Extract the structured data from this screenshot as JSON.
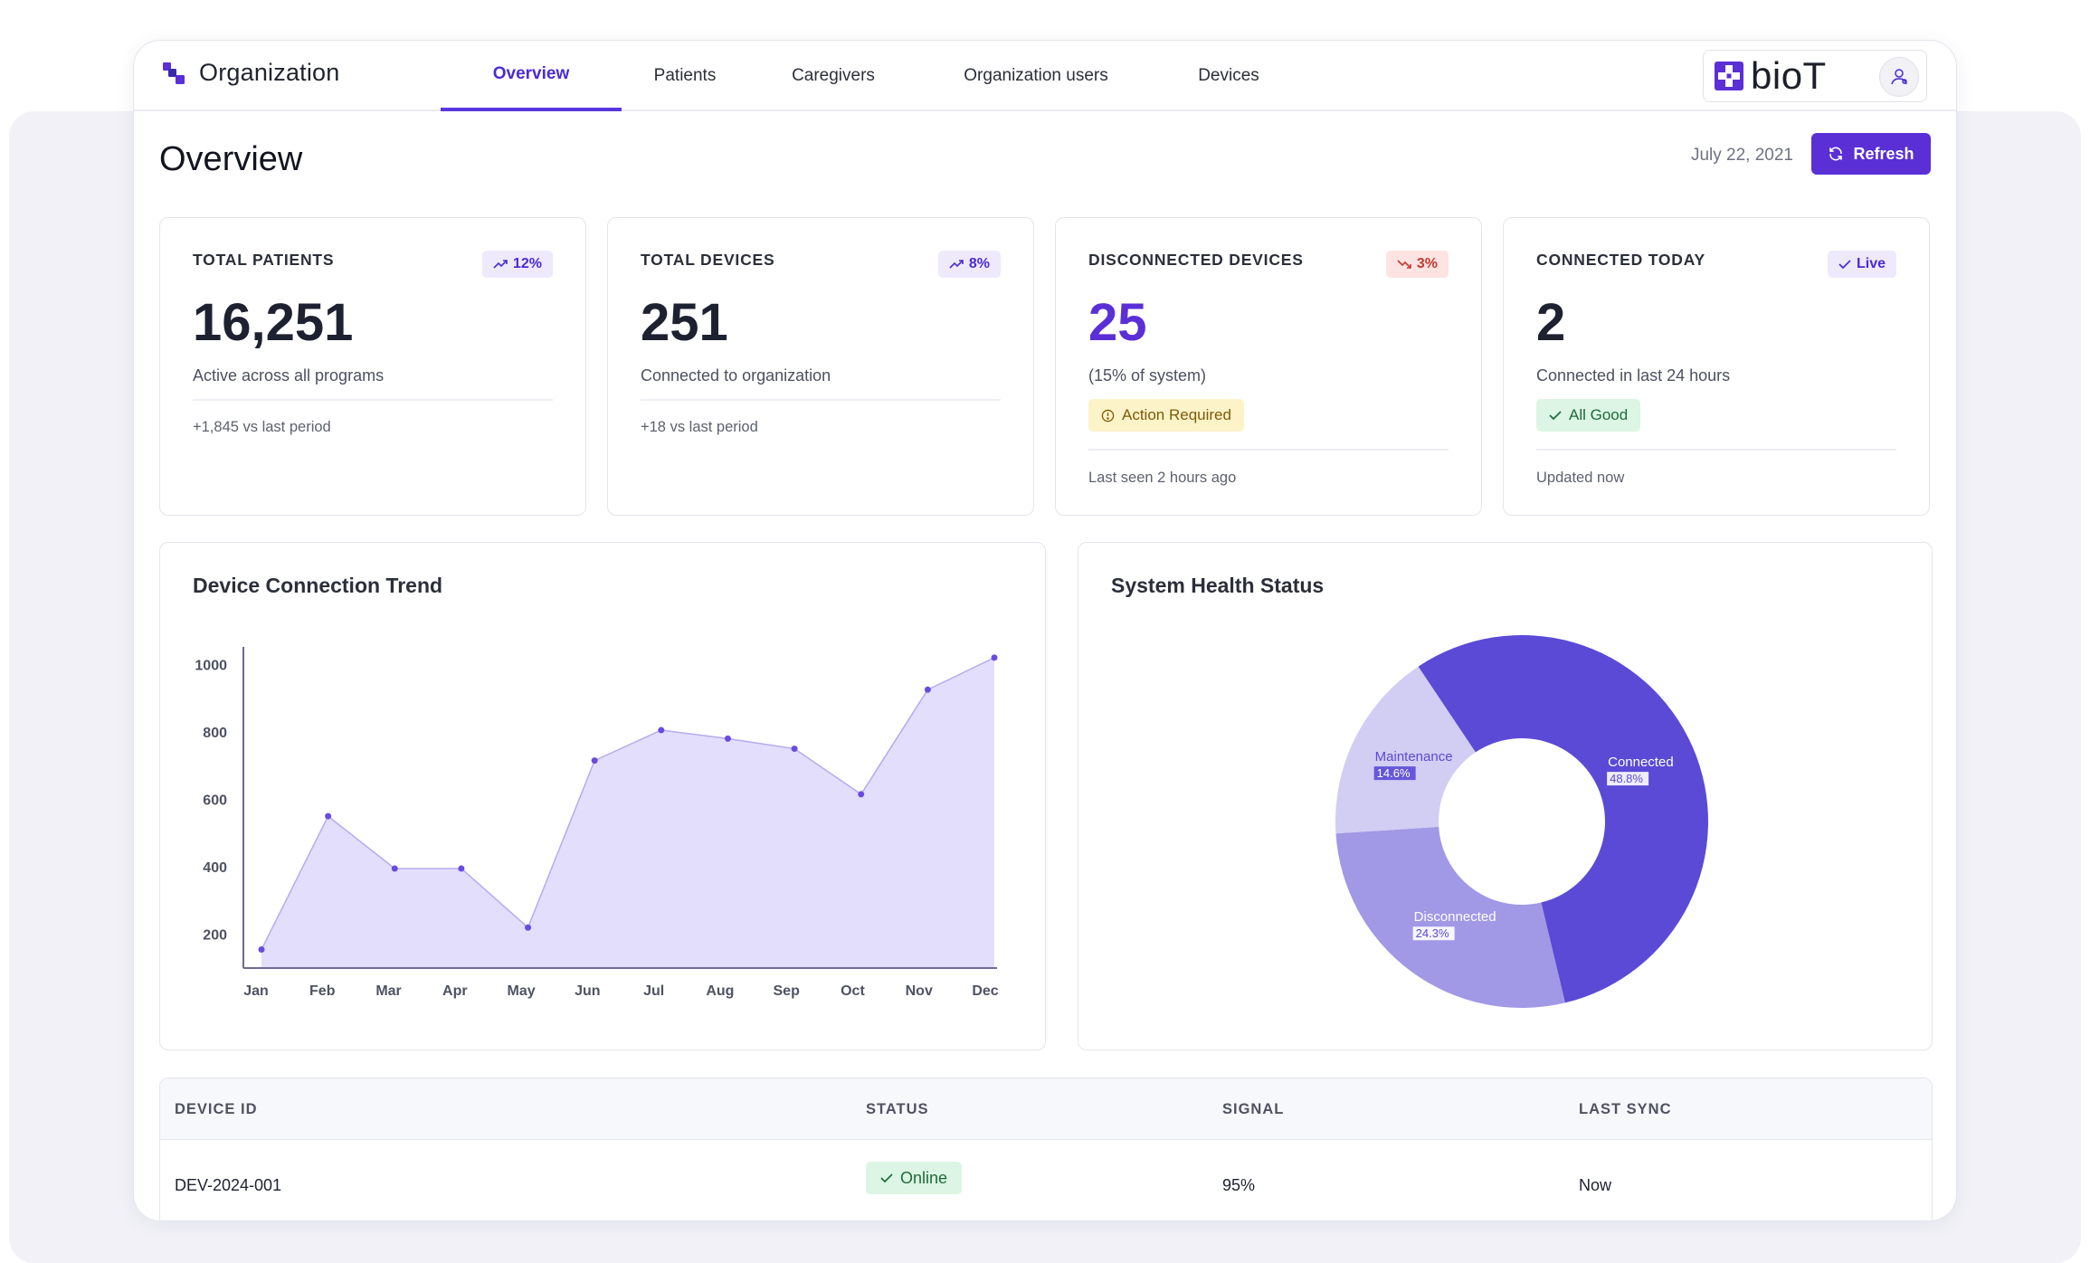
{
  "header": {
    "org_title": "Organization",
    "tabs": [
      {
        "label": "Overview",
        "active": true
      },
      {
        "label": "Patients",
        "active": false
      },
      {
        "label": "Caregivers",
        "active": false
      },
      {
        "label": "Organization users",
        "active": false
      },
      {
        "label": "Devices",
        "active": false
      }
    ],
    "brand": "bioT",
    "avatar_icon": "user-network-icon"
  },
  "page": {
    "title": "Overview",
    "date": "July 22, 2021",
    "refresh_label": "Refresh"
  },
  "stats": [
    {
      "label": "TOTAL PATIENTS",
      "badge": "12%",
      "badge_trend": "up",
      "value": "16,251",
      "sub": "Active across all programs",
      "foot": "+1,845 vs last period"
    },
    {
      "label": "TOTAL DEVICES",
      "badge": "8%",
      "badge_trend": "up",
      "value": "251",
      "sub": "Connected to organization",
      "foot": "+18 vs last period"
    },
    {
      "label": "DISCONNECTED DEVICES",
      "badge": "3%",
      "badge_trend": "down",
      "value": "25",
      "sub": "(15% of system)",
      "pill": "Action Required",
      "foot": "Last seen 2 hours ago"
    },
    {
      "label": "CONNECTED TODAY",
      "badge": "Live",
      "badge_trend": "check",
      "value": "2",
      "sub": "Connected in last 24 hours",
      "pill": "All Good",
      "foot": "Updated now"
    }
  ],
  "colors": {
    "accent": "#5a2fd6",
    "area_fill": "#e3defb",
    "area_line": "#b6aaf0",
    "point": "#6a4be0",
    "donut_connected": "#5a4ad6",
    "donut_disconnected": "#a198e6",
    "donut_maintenance": "#d2cdf3",
    "status_online": "#dcf5e4"
  },
  "chart_data": [
    {
      "type": "area",
      "title": "Device Connection Trend",
      "categories": [
        "Jan",
        "Feb",
        "Mar",
        "Apr",
        "May",
        "Jun",
        "Jul",
        "Aug",
        "Sep",
        "Oct",
        "Nov",
        "Dec"
      ],
      "values": [
        155,
        550,
        395,
        395,
        220,
        715,
        805,
        780,
        750,
        615,
        925,
        1020
      ],
      "yticks": [
        200,
        400,
        600,
        800,
        1000
      ],
      "ylim": [
        100,
        1025
      ],
      "grid": false,
      "xlabel": "",
      "ylabel": ""
    },
    {
      "type": "pie",
      "title": "System Health Status",
      "donut": true,
      "slices": [
        {
          "label": "Connected",
          "value": 48.8,
          "pct_label": "48.8%"
        },
        {
          "label": "Disconnected",
          "value": 24.3,
          "pct_label": "24.3%"
        },
        {
          "label": "Maintenance",
          "value": 14.6,
          "pct_label": "14.6%"
        }
      ]
    }
  ],
  "table": {
    "columns": [
      "DEVICE ID",
      "STATUS",
      "SIGNAL",
      "LAST SYNC"
    ],
    "rows": [
      {
        "device_id": "DEV-2024-001",
        "status": "Online",
        "signal": "95%",
        "last_sync": "Now"
      }
    ]
  }
}
